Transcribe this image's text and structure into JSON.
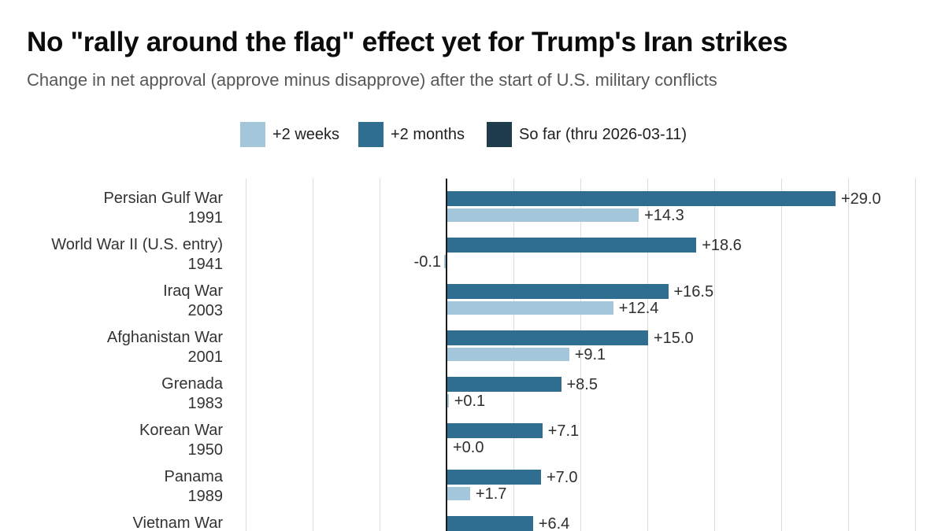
{
  "header": {
    "title": "No \"rally around the flag\" effect yet for Trump's Iran strikes",
    "subtitle": "Change in net approval (approve minus disapprove) after the start of U.S. military conflicts"
  },
  "legend": [
    {
      "label": "+2 weeks",
      "color": "#a4c6da"
    },
    {
      "label": "+2 months",
      "color": "#2f6e90"
    },
    {
      "label": "So far (thru 2026-03-11)",
      "color": "#1e3c4d"
    }
  ],
  "chart_data": {
    "type": "bar",
    "orientation": "horizontal",
    "title": "No \"rally around the flag\" effect yet for Trump's Iran strikes",
    "subtitle": "Change in net approval (approve minus disapprove) after the start of U.S. military conflicts",
    "legend_position": "top",
    "x_axis": {
      "gridline_values": [
        -15,
        -10,
        -5,
        0,
        5,
        10,
        15,
        20,
        25,
        30,
        35
      ],
      "zero_line": true,
      "tick_labels_visible": false
    },
    "series": [
      {
        "name": "+2 weeks",
        "color": "#a4c6da"
      },
      {
        "name": "+2 months",
        "color": "#2f6e90"
      },
      {
        "name": "So far (thru 2026-03-11)",
        "color": "#1e3c4d"
      }
    ],
    "rows": [
      {
        "name": "Persian Gulf War",
        "year": "1991",
        "plus2months": 29.0,
        "plus2months_label": "+29.0",
        "plus2weeks": 14.3,
        "plus2weeks_label": "+14.3"
      },
      {
        "name": "World War II (U.S. entry)",
        "year": "1941",
        "plus2months": 18.6,
        "plus2months_label": "+18.6",
        "plus2weeks": -0.1,
        "plus2weeks_label": "-0.1"
      },
      {
        "name": "Iraq War",
        "year": "2003",
        "plus2months": 16.5,
        "plus2months_label": "+16.5",
        "plus2weeks": 12.4,
        "plus2weeks_label": "+12.4"
      },
      {
        "name": "Afghanistan War",
        "year": "2001",
        "plus2months": 15.0,
        "plus2months_label": "+15.0",
        "plus2weeks": 9.1,
        "plus2weeks_label": "+9.1"
      },
      {
        "name": "Grenada",
        "year": "1983",
        "plus2months": 8.5,
        "plus2months_label": "+8.5",
        "plus2weeks": 0.1,
        "plus2weeks_label": "+0.1"
      },
      {
        "name": "Korean War",
        "year": "1950",
        "plus2months": 7.1,
        "plus2months_label": "+7.1",
        "plus2weeks": 0.0,
        "plus2weeks_label": "+0.0"
      },
      {
        "name": "Panama",
        "year": "1989",
        "plus2months": 7.0,
        "plus2months_label": "+7.0",
        "plus2weeks": 1.7,
        "plus2weeks_label": "+1.7"
      },
      {
        "name": "Vietnam War",
        "year": "",
        "plus2months": 6.4,
        "plus2months_label": "+6.4",
        "plus2weeks": null,
        "plus2weeks_label": ""
      }
    ]
  }
}
